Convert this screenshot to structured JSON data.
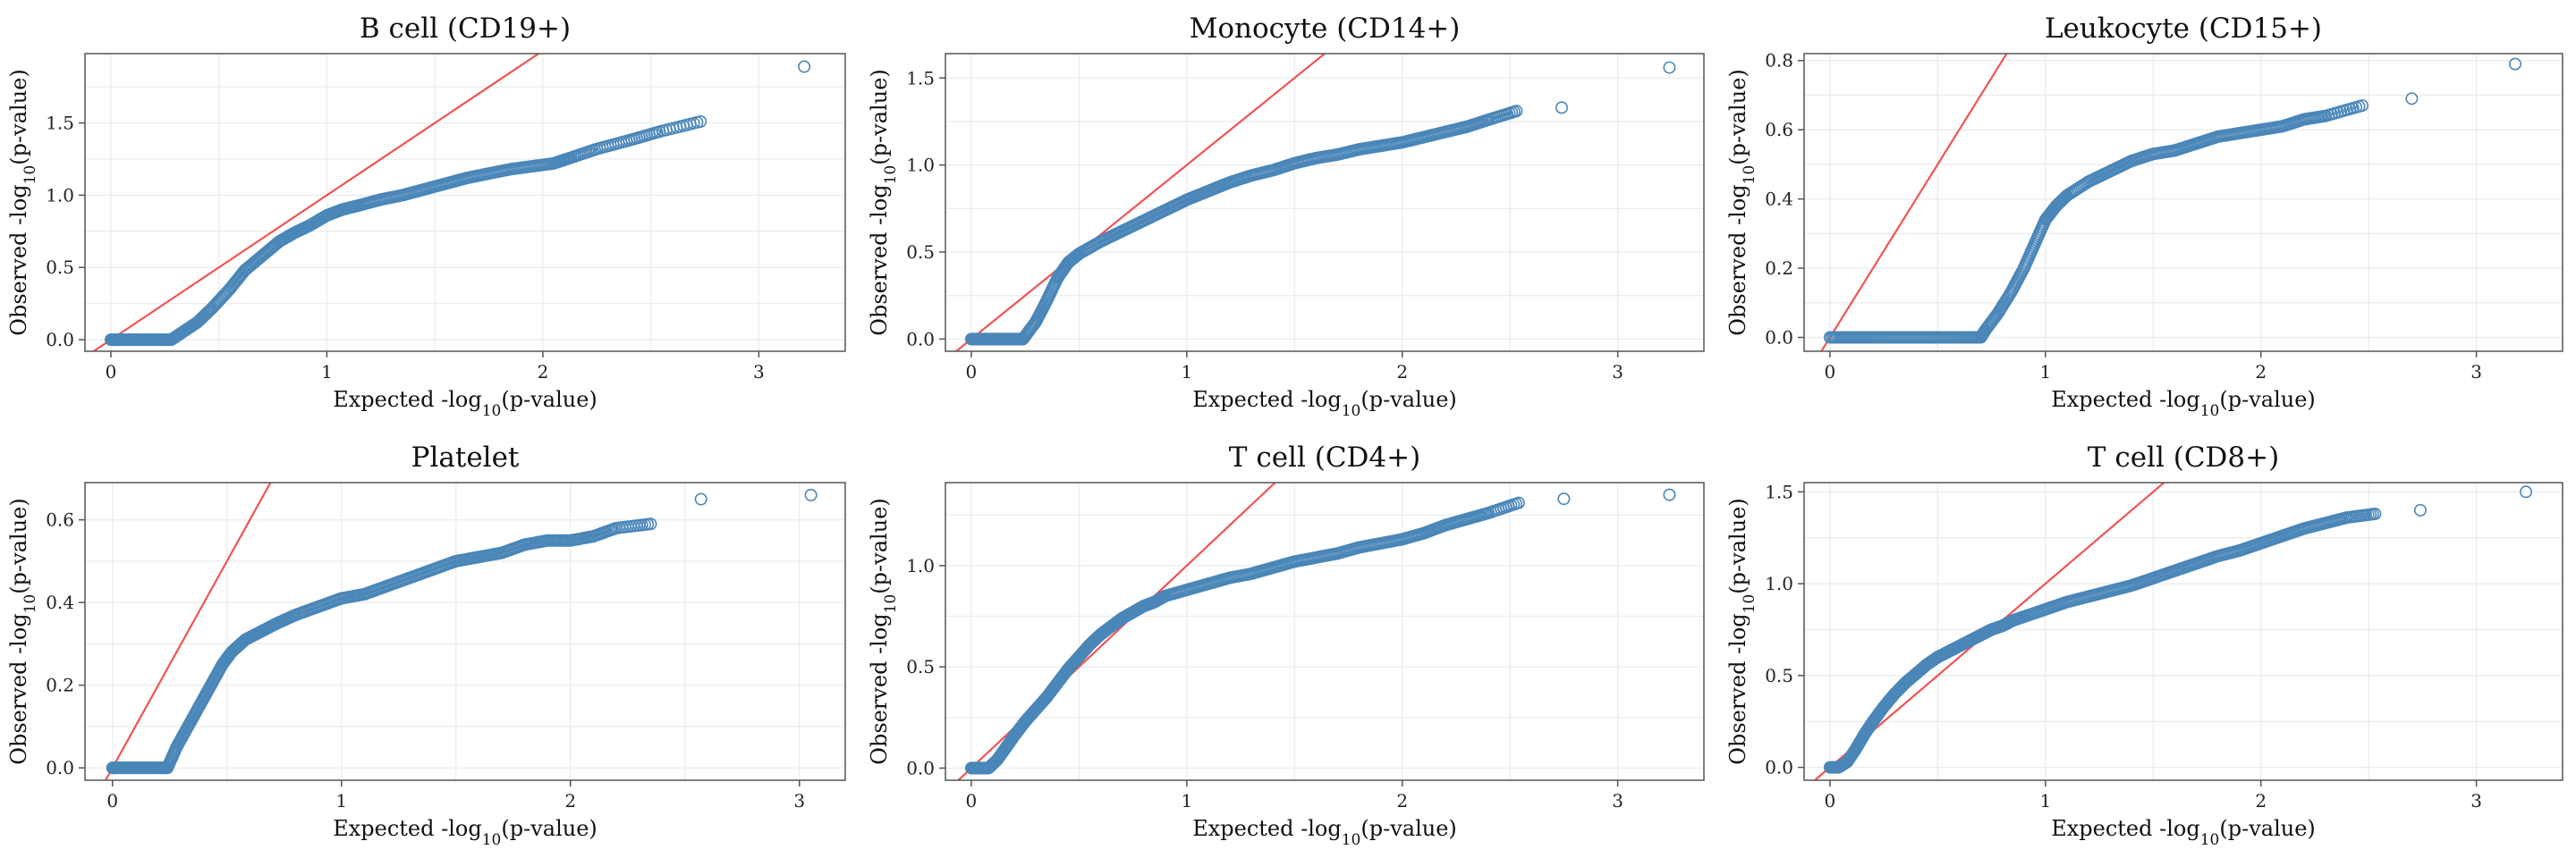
{
  "figure": {
    "colors": {
      "points": "#4a86b8",
      "reference_line": "#f05454",
      "grid": "#ececec",
      "frame": "#555555"
    }
  },
  "chart_data": [
    {
      "type": "scatter",
      "title": "B cell (CD19+)",
      "xlabel": {
        "pre": "Expected -log",
        "sub": "10",
        "post": "(p-value)"
      },
      "ylabel": {
        "pre": "Observed -log",
        "sub": "10",
        "post": "(p-value)"
      },
      "xlim": [
        -0.12,
        3.4
      ],
      "ylim": [
        -0.08,
        1.98
      ],
      "x_ticks": [
        0,
        1,
        2,
        3
      ],
      "x_tick_labels": [
        "0",
        "1",
        "2",
        "3"
      ],
      "y_ticks": [
        0,
        0.5,
        1,
        1.5
      ],
      "y_tick_labels": [
        "0.0",
        "0.5",
        "1.0",
        "1.5"
      ],
      "reference_line": {
        "slope": 1,
        "intercept": 0
      },
      "grid": true,
      "series": [
        {
          "x": [
            0,
            0.05,
            0.1,
            0.15,
            0.2,
            0.25,
            0.28,
            0.33,
            0.4,
            0.47,
            0.55,
            0.62,
            0.7,
            0.78,
            0.85,
            0.92,
            1.0,
            1.07,
            1.15,
            1.25,
            1.35,
            1.45,
            1.55,
            1.65,
            1.75,
            1.85,
            1.95,
            2.05,
            2.13,
            2.25,
            2.4,
            2.54,
            2.73,
            3.21
          ],
          "y": [
            0,
            0,
            0,
            0,
            0,
            0,
            0,
            0.05,
            0.12,
            0.22,
            0.35,
            0.48,
            0.58,
            0.68,
            0.74,
            0.79,
            0.86,
            0.9,
            0.93,
            0.97,
            1.0,
            1.04,
            1.08,
            1.12,
            1.15,
            1.18,
            1.2,
            1.22,
            1.26,
            1.32,
            1.38,
            1.44,
            1.51,
            1.89
          ]
        }
      ]
    },
    {
      "type": "scatter",
      "title": "Monocyte (CD14+)",
      "xlabel": {
        "pre": "Expected -log",
        "sub": "10",
        "post": "(p-value)"
      },
      "ylabel": {
        "pre": "Observed -log",
        "sub": "10",
        "post": "(p-value)"
      },
      "xlim": [
        -0.12,
        3.4
      ],
      "ylim": [
        -0.07,
        1.64
      ],
      "x_ticks": [
        0,
        1,
        2,
        3
      ],
      "x_tick_labels": [
        "0",
        "1",
        "2",
        "3"
      ],
      "y_ticks": [
        0,
        0.5,
        1,
        1.5
      ],
      "y_tick_labels": [
        "0.0",
        "0.5",
        "1.0",
        "1.5"
      ],
      "reference_line": {
        "slope": 1,
        "intercept": 0
      },
      "grid": true,
      "series": [
        {
          "x": [
            0,
            0.05,
            0.1,
            0.15,
            0.2,
            0.24,
            0.3,
            0.35,
            0.4,
            0.45,
            0.5,
            0.6,
            0.7,
            0.8,
            0.9,
            1.0,
            1.1,
            1.2,
            1.3,
            1.4,
            1.5,
            1.6,
            1.7,
            1.8,
            1.9,
            2.0,
            2.1,
            2.2,
            2.3,
            2.4,
            2.53,
            2.74,
            3.24
          ],
          "y": [
            0,
            0,
            0,
            0,
            0,
            0,
            0.1,
            0.22,
            0.35,
            0.44,
            0.49,
            0.56,
            0.62,
            0.68,
            0.74,
            0.8,
            0.85,
            0.9,
            0.94,
            0.97,
            1.01,
            1.04,
            1.06,
            1.09,
            1.11,
            1.13,
            1.16,
            1.19,
            1.22,
            1.26,
            1.31,
            1.33,
            1.56
          ]
        }
      ]
    },
    {
      "type": "scatter",
      "title": "Leukocyte (CD15+)",
      "xlabel": {
        "pre": "Expected -log",
        "sub": "10",
        "post": "(p-value)"
      },
      "ylabel": {
        "pre": "Observed -log",
        "sub": "10",
        "post": "(p-value)"
      },
      "xlim": [
        -0.12,
        3.4
      ],
      "ylim": [
        -0.04,
        0.82
      ],
      "x_ticks": [
        0,
        1,
        2,
        3
      ],
      "x_tick_labels": [
        "0",
        "1",
        "2",
        "3"
      ],
      "y_ticks": [
        0,
        0.2,
        0.4,
        0.6,
        0.8
      ],
      "y_tick_labels": [
        "0.0",
        "0.2",
        "0.4",
        "0.6",
        "0.8"
      ],
      "reference_line": {
        "slope": 1,
        "intercept": 0
      },
      "grid": true,
      "series": [
        {
          "x": [
            0,
            0.1,
            0.2,
            0.3,
            0.4,
            0.5,
            0.6,
            0.7,
            0.72,
            0.78,
            0.84,
            0.9,
            0.95,
            1.0,
            1.05,
            1.1,
            1.2,
            1.3,
            1.4,
            1.5,
            1.6,
            1.7,
            1.8,
            1.9,
            2.0,
            2.1,
            2.2,
            2.3,
            2.47,
            2.7,
            3.18
          ],
          "y": [
            0,
            0,
            0,
            0,
            0,
            0,
            0,
            0,
            0.02,
            0.07,
            0.13,
            0.2,
            0.27,
            0.34,
            0.38,
            0.41,
            0.45,
            0.48,
            0.51,
            0.53,
            0.54,
            0.56,
            0.58,
            0.59,
            0.6,
            0.61,
            0.63,
            0.64,
            0.67,
            0.69,
            0.79
          ]
        }
      ]
    },
    {
      "type": "scatter",
      "title": "Platelet",
      "xlabel": {
        "pre": "Expected -log",
        "sub": "10",
        "post": "(p-value)"
      },
      "ylabel": {
        "pre": "Observed -log",
        "sub": "10",
        "post": "(p-value)"
      },
      "xlim": [
        -0.12,
        3.2
      ],
      "ylim": [
        -0.03,
        0.69
      ],
      "x_ticks": [
        0,
        1,
        2,
        3
      ],
      "x_tick_labels": [
        "0",
        "1",
        "2",
        "3"
      ],
      "y_ticks": [
        0,
        0.2,
        0.4,
        0.6
      ],
      "y_tick_labels": [
        "0.0",
        "0.2",
        "0.4",
        "0.6"
      ],
      "reference_line": {
        "slope": 1,
        "intercept": 0
      },
      "grid": true,
      "series": [
        {
          "x": [
            0,
            0.05,
            0.1,
            0.15,
            0.2,
            0.24,
            0.28,
            0.33,
            0.38,
            0.43,
            0.48,
            0.52,
            0.58,
            0.65,
            0.72,
            0.8,
            0.9,
            1.0,
            1.1,
            1.2,
            1.3,
            1.4,
            1.5,
            1.6,
            1.7,
            1.8,
            1.9,
            2.0,
            2.1,
            2.2,
            2.35,
            2.57,
            3.05
          ],
          "y": [
            0,
            0,
            0,
            0,
            0,
            0,
            0.05,
            0.1,
            0.15,
            0.2,
            0.25,
            0.28,
            0.31,
            0.33,
            0.35,
            0.37,
            0.39,
            0.41,
            0.42,
            0.44,
            0.46,
            0.48,
            0.5,
            0.51,
            0.52,
            0.54,
            0.55,
            0.55,
            0.56,
            0.58,
            0.59,
            0.65,
            0.66
          ]
        }
      ]
    },
    {
      "type": "scatter",
      "title": "T cell (CD4+)",
      "xlabel": {
        "pre": "Expected -log",
        "sub": "10",
        "post": "(p-value)"
      },
      "ylabel": {
        "pre": "Observed -log",
        "sub": "10",
        "post": "(p-value)"
      },
      "xlim": [
        -0.12,
        3.4
      ],
      "ylim": [
        -0.06,
        1.41
      ],
      "x_ticks": [
        0,
        1,
        2,
        3
      ],
      "x_tick_labels": [
        "0",
        "1",
        "2",
        "3"
      ],
      "y_ticks": [
        0,
        0.5,
        1
      ],
      "y_tick_labels": [
        "0.0",
        "0.5",
        "1.0"
      ],
      "reference_line": {
        "slope": 1,
        "intercept": 0
      },
      "grid": true,
      "series": [
        {
          "x": [
            0,
            0.04,
            0.08,
            0.12,
            0.16,
            0.2,
            0.25,
            0.3,
            0.35,
            0.4,
            0.45,
            0.5,
            0.55,
            0.6,
            0.65,
            0.7,
            0.75,
            0.8,
            0.85,
            0.9,
            1.0,
            1.1,
            1.2,
            1.3,
            1.4,
            1.5,
            1.6,
            1.7,
            1.8,
            1.9,
            2.0,
            2.1,
            2.2,
            2.3,
            2.4,
            2.54,
            2.75,
            3.24
          ],
          "y": [
            0,
            0,
            0,
            0.04,
            0.1,
            0.16,
            0.23,
            0.29,
            0.35,
            0.42,
            0.49,
            0.55,
            0.61,
            0.66,
            0.7,
            0.74,
            0.77,
            0.8,
            0.82,
            0.85,
            0.88,
            0.91,
            0.94,
            0.96,
            0.99,
            1.02,
            1.04,
            1.06,
            1.09,
            1.11,
            1.13,
            1.16,
            1.2,
            1.23,
            1.26,
            1.31,
            1.33,
            1.35
          ]
        }
      ]
    },
    {
      "type": "scatter",
      "title": "T cell (CD8+)",
      "xlabel": {
        "pre": "Expected -log",
        "sub": "10",
        "post": "(p-value)"
      },
      "ylabel": {
        "pre": "Observed -log",
        "sub": "10",
        "post": "(p-value)"
      },
      "xlim": [
        -0.12,
        3.4
      ],
      "ylim": [
        -0.07,
        1.55
      ],
      "x_ticks": [
        0,
        1,
        2,
        3
      ],
      "x_tick_labels": [
        "0",
        "1",
        "2",
        "3"
      ],
      "y_ticks": [
        0,
        0.5,
        1,
        1.5
      ],
      "y_tick_labels": [
        "0.0",
        "0.5",
        "1.0",
        "1.5"
      ],
      "reference_line": {
        "slope": 1,
        "intercept": 0
      },
      "grid": true,
      "series": [
        {
          "x": [
            0,
            0.04,
            0.08,
            0.12,
            0.16,
            0.2,
            0.25,
            0.3,
            0.35,
            0.4,
            0.45,
            0.5,
            0.55,
            0.6,
            0.65,
            0.7,
            0.75,
            0.8,
            0.85,
            0.9,
            1.0,
            1.1,
            1.2,
            1.3,
            1.4,
            1.5,
            1.6,
            1.7,
            1.8,
            1.9,
            2.0,
            2.1,
            2.2,
            2.3,
            2.4,
            2.53,
            2.74,
            3.23
          ],
          "y": [
            0,
            0,
            0.03,
            0.1,
            0.18,
            0.25,
            0.33,
            0.4,
            0.46,
            0.51,
            0.56,
            0.6,
            0.63,
            0.66,
            0.69,
            0.72,
            0.75,
            0.77,
            0.8,
            0.82,
            0.86,
            0.9,
            0.93,
            0.96,
            0.99,
            1.03,
            1.07,
            1.11,
            1.15,
            1.18,
            1.22,
            1.26,
            1.3,
            1.33,
            1.36,
            1.38,
            1.4,
            1.5
          ]
        }
      ]
    }
  ]
}
